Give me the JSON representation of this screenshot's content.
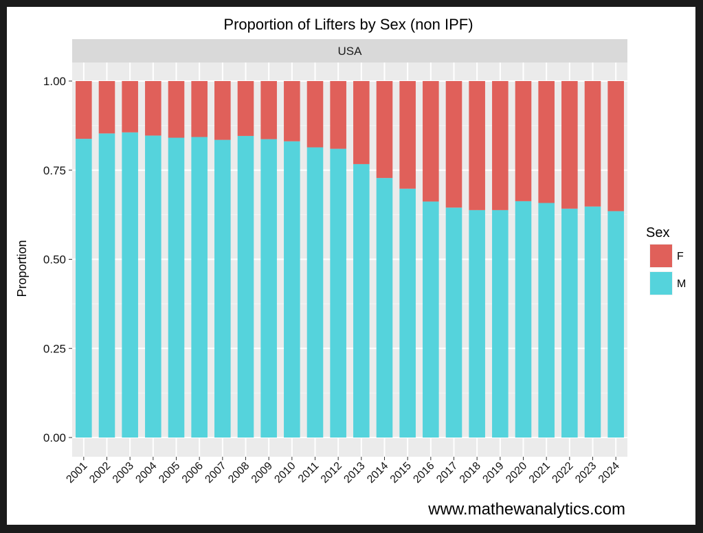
{
  "chart_data": {
    "type": "bar",
    "stacked": true,
    "title": "Proportion of Lifters by Sex (non IPF)",
    "facet": "USA",
    "ylabel": "Proportion",
    "xlabel": "",
    "ylim": [
      0,
      1
    ],
    "yticks": [
      "0.00",
      "0.25",
      "0.50",
      "0.75",
      "1.00"
    ],
    "categories": [
      "2001",
      "2002",
      "2003",
      "2004",
      "2005",
      "2006",
      "2007",
      "2008",
      "2009",
      "2010",
      "2011",
      "2012",
      "2013",
      "2014",
      "2015",
      "2016",
      "2017",
      "2018",
      "2019",
      "2020",
      "2021",
      "2022",
      "2023",
      "2024"
    ],
    "series": [
      {
        "name": "M",
        "color": "#55D3DC",
        "values": [
          0.838,
          0.853,
          0.856,
          0.847,
          0.841,
          0.843,
          0.835,
          0.846,
          0.837,
          0.831,
          0.814,
          0.81,
          0.767,
          0.728,
          0.698,
          0.662,
          0.645,
          0.638,
          0.638,
          0.663,
          0.658,
          0.642,
          0.648,
          0.635
        ]
      },
      {
        "name": "F",
        "color": "#E0605A",
        "values": [
          0.162,
          0.147,
          0.144,
          0.153,
          0.159,
          0.157,
          0.165,
          0.154,
          0.163,
          0.169,
          0.186,
          0.19,
          0.233,
          0.272,
          0.302,
          0.338,
          0.355,
          0.362,
          0.362,
          0.337,
          0.342,
          0.358,
          0.352,
          0.365
        ]
      }
    ],
    "legend": {
      "title": "Sex",
      "position": "right",
      "items": [
        "F",
        "M"
      ]
    },
    "grid": true,
    "panel_background": "#EBEBEB",
    "strip_background": "#D9D9D9",
    "caption": "www.mathewanalytics.com"
  }
}
